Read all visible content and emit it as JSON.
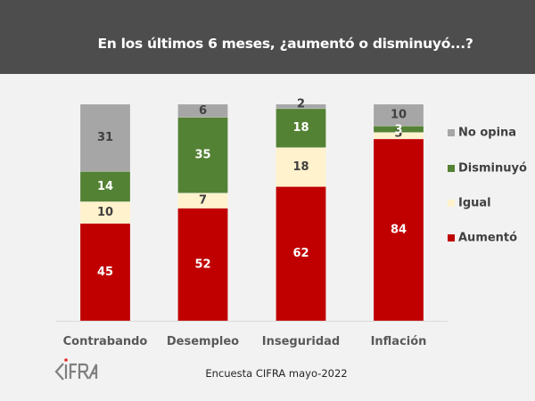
{
  "header": {
    "title": "En los últimos 6 meses, ¿aumentó o disminuyó...?"
  },
  "footer": {
    "source": "Encuesta CIFRA mayo-2022",
    "logo_text": "CIFRA",
    "logo_icon": "cifra-logo-icon"
  },
  "chart_data": {
    "type": "bar",
    "stacked": true,
    "title": "En los últimos 6 meses, ¿aumentó o disminuyó...?",
    "xlabel": "",
    "ylabel": "",
    "ylim": [
      0,
      100
    ],
    "grid": false,
    "legend_position": "right",
    "categories": [
      "Contrabando",
      "Desempleo",
      "Inseguridad",
      "Inflación"
    ],
    "series": [
      {
        "name": "Aumentó",
        "color": "#c00000",
        "label_color": "#ffffff",
        "values": [
          45,
          52,
          62,
          84
        ]
      },
      {
        "name": "Igual",
        "color": "#fff2cc",
        "label_color": "#404040",
        "values": [
          10,
          7,
          18,
          3
        ]
      },
      {
        "name": "Disminuyó",
        "color": "#548235",
        "label_color": "#ffffff",
        "values": [
          14,
          35,
          18,
          3
        ]
      },
      {
        "name": "No opina",
        "color": "#a6a6a6",
        "label_color": "#404040",
        "values": [
          31,
          6,
          2,
          10
        ]
      }
    ],
    "legend_order": [
      "No opina",
      "Disminuyó",
      "Igual",
      "Aumentó"
    ]
  }
}
